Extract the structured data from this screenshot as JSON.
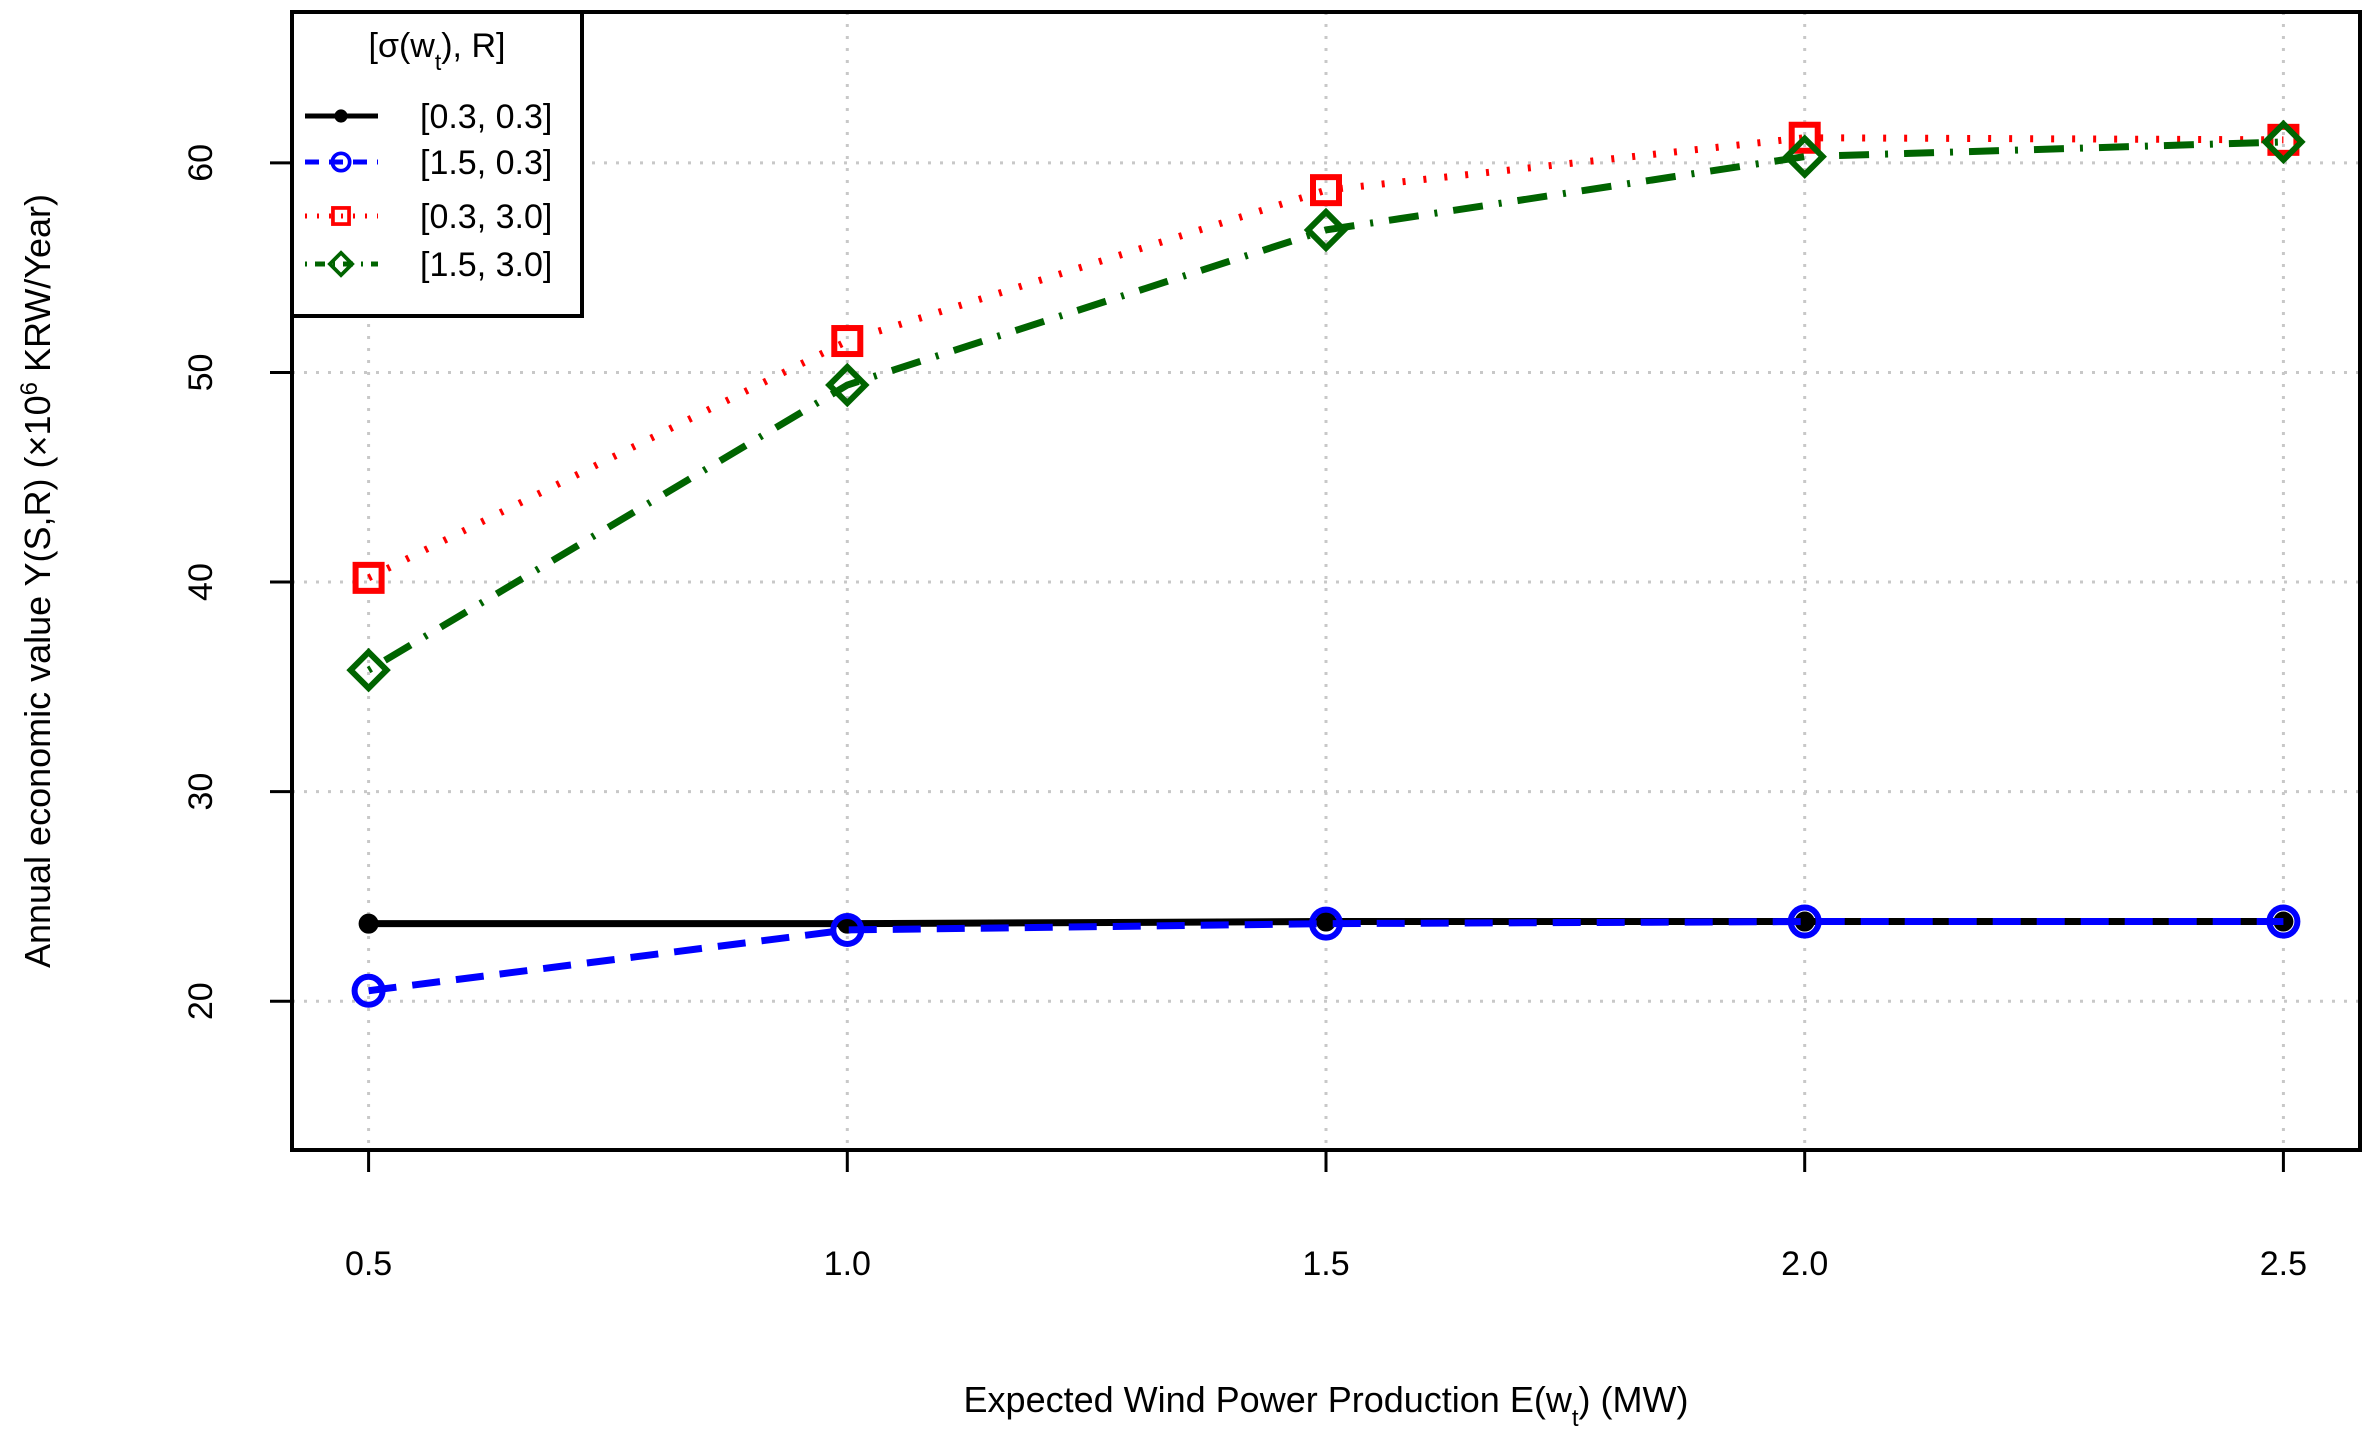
{
  "chart_data": {
    "type": "line",
    "title": "",
    "xlabel": "Expected Wind Power Production E(w",
    "xlabel_sub": "t",
    "xlabel_tail": ") (MW)",
    "ylabel": "Annual economic value Y(S,R) (×10",
    "ylabel_sup": "6",
    "ylabel_tail": " KRW/Year)",
    "x": [
      0.5,
      1.0,
      1.5,
      2.0,
      2.5
    ],
    "x_tick_labels": [
      "0.5",
      "1.0",
      "1.5",
      "2.0",
      "2.5"
    ],
    "y_ticks": [
      20,
      30,
      40,
      50,
      60
    ],
    "y_tick_labels": [
      "20",
      "30",
      "40",
      "50",
      "60"
    ],
    "xlim": [
      0.42,
      2.58
    ],
    "ylim": [
      12.9,
      67.2
    ],
    "grid": true,
    "legend": {
      "placement": "top-left",
      "title_prefix": "[σ(w",
      "title_sub": "t",
      "title_suffix": "), R]"
    },
    "series": [
      {
        "name": "[0.3, 0.3]",
        "values": [
          23.7,
          23.7,
          23.8,
          23.8,
          23.8
        ],
        "color": "#000000",
        "line": "solid",
        "marker": "filled-circle"
      },
      {
        "name": "[1.5, 0.3]",
        "values": [
          20.5,
          23.4,
          23.7,
          23.8,
          23.8
        ],
        "color": "#0000ff",
        "line": "dashed",
        "marker": "open-circle"
      },
      {
        "name": "[0.3, 3.0]",
        "values": [
          40.2,
          51.5,
          58.7,
          61.2,
          61.1
        ],
        "color": "#ff0000",
        "line": "dotted",
        "marker": "open-square"
      },
      {
        "name": "[1.5, 3.0]",
        "values": [
          35.8,
          49.4,
          56.8,
          60.3,
          61.0
        ],
        "color": "#006400",
        "line": "dotdash",
        "marker": "open-diamond"
      }
    ]
  }
}
